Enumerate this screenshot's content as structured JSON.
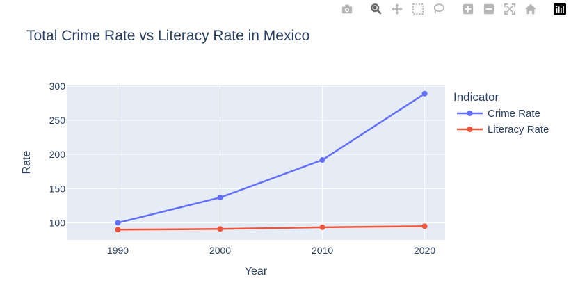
{
  "modebar": {
    "buttons": [
      {
        "name": "camera-icon",
        "title": "Download plot as a png"
      },
      {
        "name": "zoom-icon",
        "title": "Zoom"
      },
      {
        "name": "pan-icon",
        "title": "Pan"
      },
      {
        "name": "box-select-icon",
        "title": "Box Select"
      },
      {
        "name": "lasso-select-icon",
        "title": "Lasso Select"
      },
      {
        "name": "zoom-in-icon",
        "title": "Zoom in"
      },
      {
        "name": "zoom-out-icon",
        "title": "Zoom out"
      },
      {
        "name": "autoscale-icon",
        "title": "Autoscale"
      },
      {
        "name": "reset-axes-icon",
        "title": "Reset axes"
      },
      {
        "name": "plotly-logo-icon",
        "title": "Produced with Plotly"
      }
    ]
  },
  "chart_data": {
    "type": "line",
    "title": "Total Crime Rate vs Literacy Rate in Mexico",
    "xlabel": "Year",
    "ylabel": "Rate",
    "x": [
      1990,
      2000,
      2010,
      2020
    ],
    "xlim": [
      1985,
      2022
    ],
    "ylim": [
      75,
      302
    ],
    "xticks": [
      1990,
      2000,
      2010,
      2020
    ],
    "yticks": [
      100,
      150,
      200,
      250,
      300
    ],
    "grid": true,
    "legend": {
      "title": "Indicator",
      "placement": "right"
    },
    "series": [
      {
        "name": "Crime Rate",
        "color": "#636efa",
        "values": [
          100,
          137,
          192,
          289
        ]
      },
      {
        "name": "Literacy Rate",
        "color": "#ef553b",
        "values": [
          90,
          91,
          93.5,
          95
        ]
      }
    ],
    "colors": {
      "plot_bg": "#e5ecf6",
      "grid": "#ffffff",
      "text": "#2a3f5f"
    }
  }
}
